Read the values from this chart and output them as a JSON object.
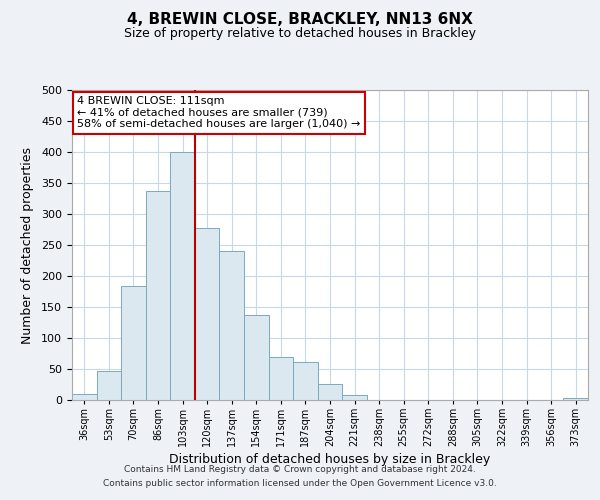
{
  "title": "4, BREWIN CLOSE, BRACKLEY, NN13 6NX",
  "subtitle": "Size of property relative to detached houses in Brackley",
  "xlabel": "Distribution of detached houses by size in Brackley",
  "ylabel": "Number of detached properties",
  "bin_labels": [
    "36sqm",
    "53sqm",
    "70sqm",
    "86sqm",
    "103sqm",
    "120sqm",
    "137sqm",
    "154sqm",
    "171sqm",
    "187sqm",
    "204sqm",
    "221sqm",
    "238sqm",
    "255sqm",
    "272sqm",
    "288sqm",
    "305sqm",
    "322sqm",
    "339sqm",
    "356sqm",
    "373sqm"
  ],
  "bar_heights": [
    10,
    46,
    184,
    337,
    400,
    277,
    241,
    137,
    70,
    62,
    26,
    8,
    0,
    0,
    0,
    0,
    0,
    0,
    0,
    0,
    3
  ],
  "bar_color": "#dce8f0",
  "bar_edge_color": "#7aaabf",
  "red_line_color": "#bb0000",
  "red_line_x": 4.5,
  "ylim": [
    0,
    500
  ],
  "yticks": [
    0,
    50,
    100,
    150,
    200,
    250,
    300,
    350,
    400,
    450,
    500
  ],
  "annotation_text_line1": "4 BREWIN CLOSE: 111sqm",
  "annotation_text_line2": "← 41% of detached houses are smaller (739)",
  "annotation_text_line3": "58% of semi-detached houses are larger (1,040) →",
  "annotation_box_color": "#ffffff",
  "annotation_box_edge_color": "#cc0000",
  "footnote_line1": "Contains HM Land Registry data © Crown copyright and database right 2024.",
  "footnote_line2": "Contains public sector information licensed under the Open Government Licence v3.0.",
  "background_color": "#eef2f7",
  "plot_background_color": "#ffffff",
  "grid_color": "#c8d8e8",
  "title_fontsize": 11,
  "subtitle_fontsize": 9
}
